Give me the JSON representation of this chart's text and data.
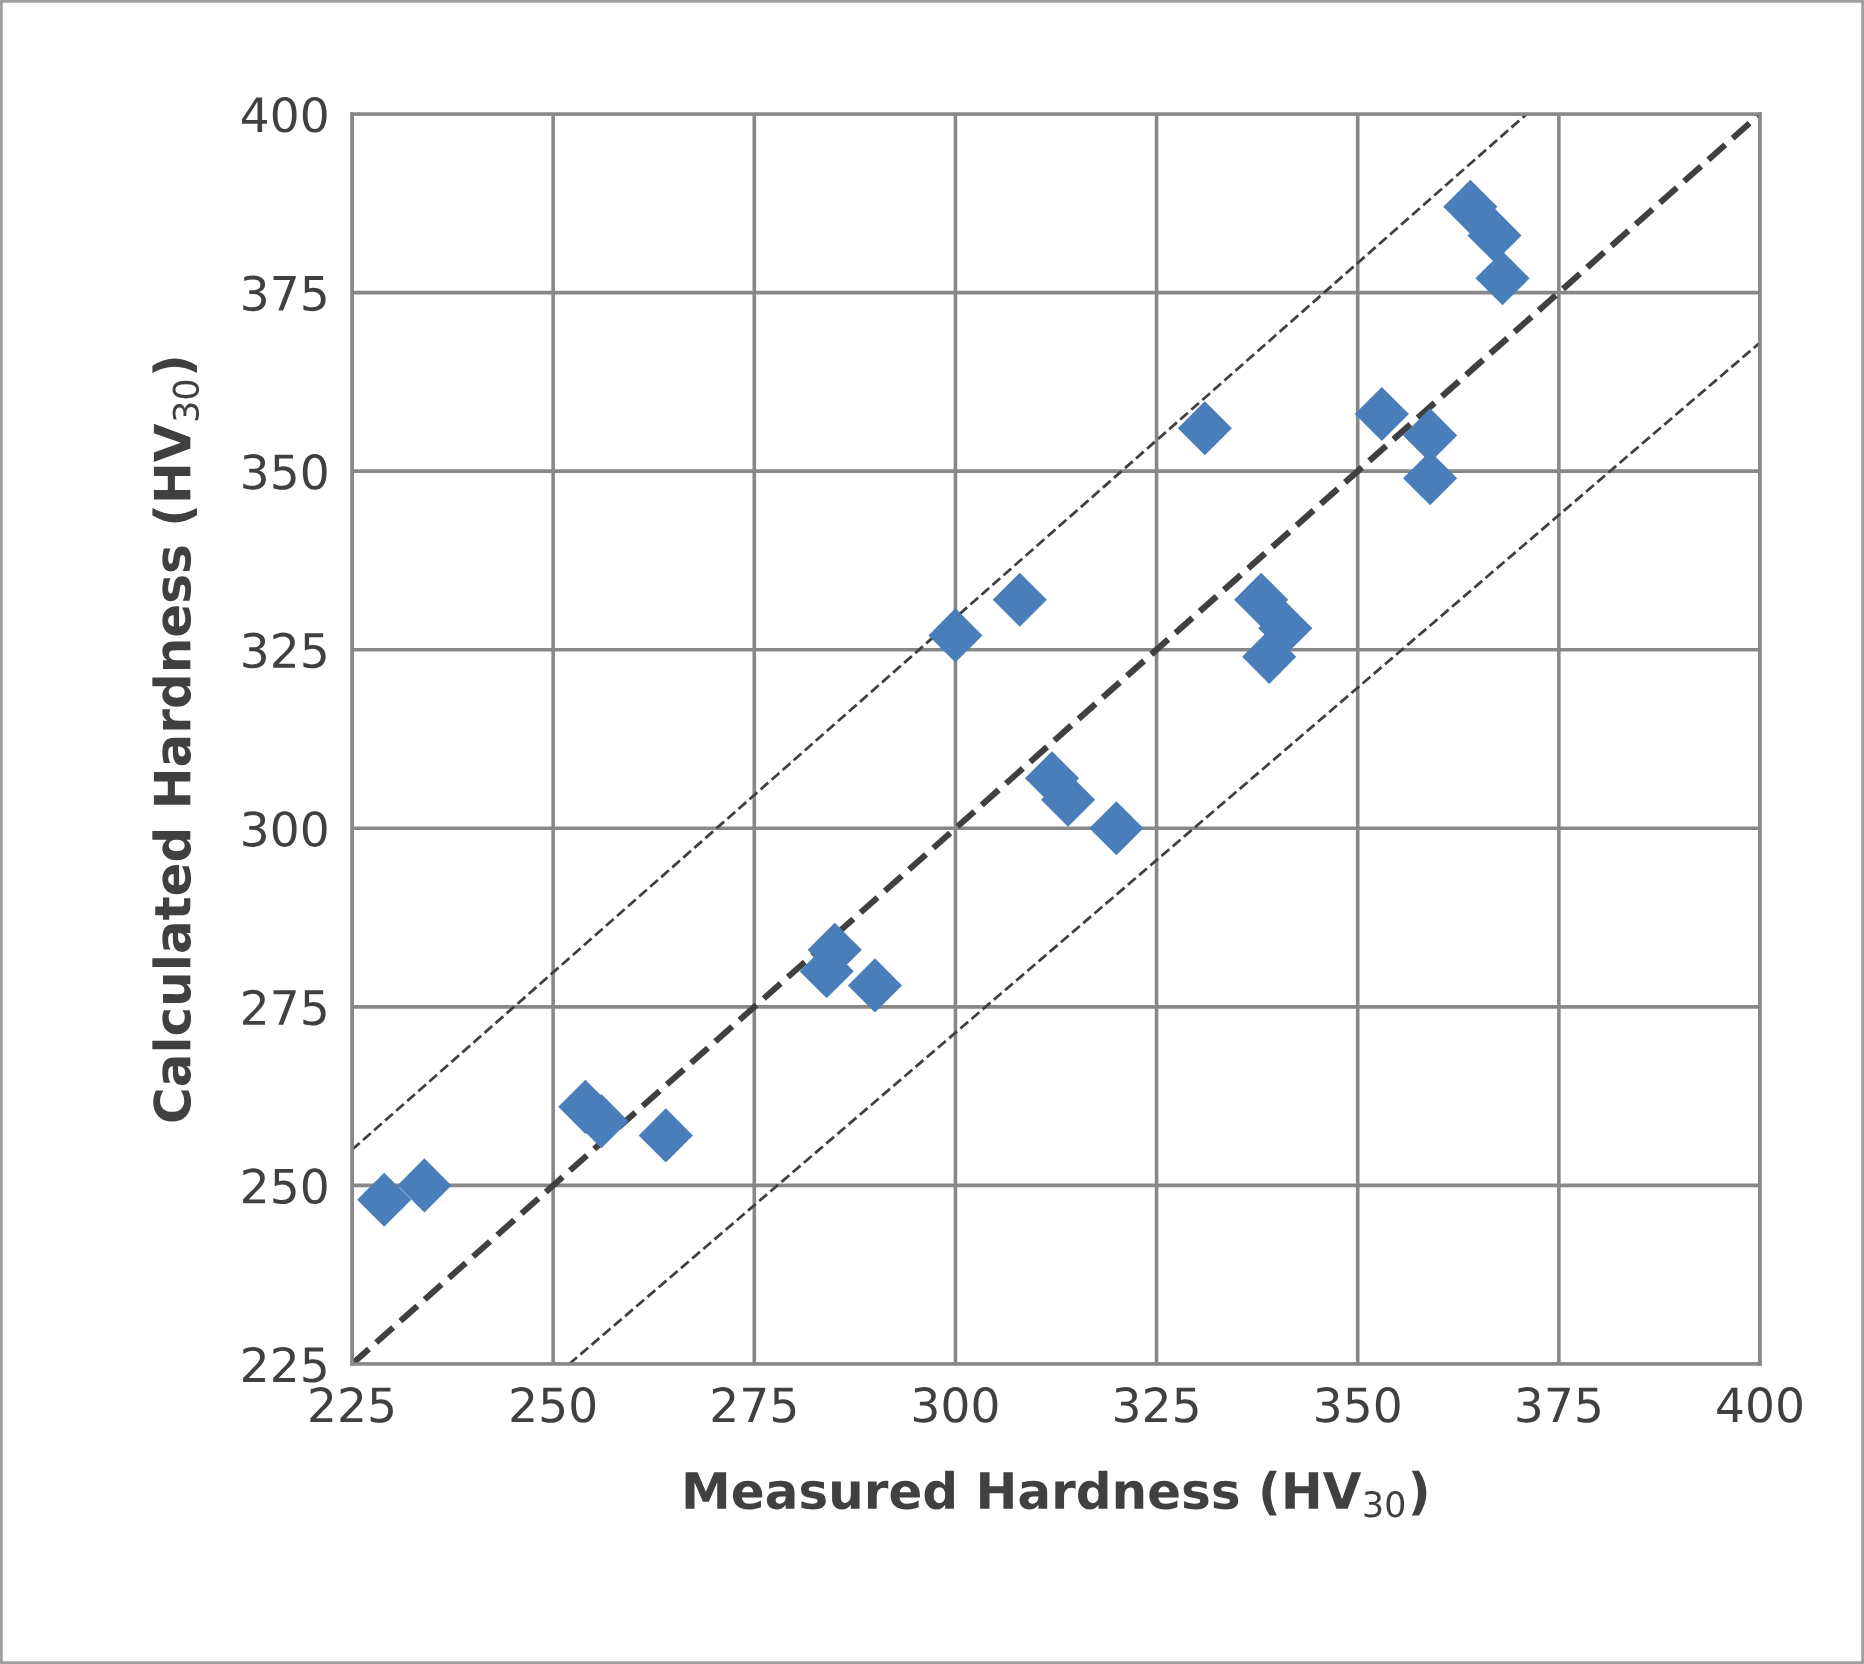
{
  "chart_data": {
    "type": "scatter",
    "xlabel": "Measured Hardness (HV$_{30}$)",
    "ylabel": "Calculated Hardness (HV$_{30}$)",
    "xlim": [
      225,
      400
    ],
    "ylim": [
      225,
      400
    ],
    "xticks": [
      225,
      250,
      275,
      300,
      325,
      350,
      375,
      400
    ],
    "yticks": [
      225,
      250,
      275,
      300,
      325,
      350,
      375,
      400
    ],
    "grid": true,
    "series": [
      {
        "color": "#4a7ebb",
        "marker": "diamond",
        "x": [
          229,
          234,
          254,
          256,
          264,
          284,
          285,
          290,
          300,
          308,
          312,
          314,
          320,
          331,
          338,
          341,
          339,
          353,
          359,
          359,
          364,
          367,
          368
        ],
        "values": [
          248,
          250,
          261,
          259,
          257,
          280,
          283,
          278,
          327,
          332,
          307,
          304,
          300,
          356,
          332,
          328,
          324,
          358,
          355,
          349,
          387,
          383,
          377
        ]
      },
      {
        "type": "line",
        "color": "#404040",
        "marker": "none",
        "line_style": "dashed",
        "x": [
          225,
          400
        ],
        "values": [
          225,
          400
        ]
      },
      {
        "type": "line",
        "color": "#404040",
        "marker": "none",
        "line_style": "dashed",
        "x": [
          225,
          371
        ],
        "values": [
          255,
          400
        ]
      },
      {
        "type": "line",
        "color": "#404040",
        "marker": "none",
        "line_style": "dashed",
        "x": [
          252,
          400
        ],
        "values": [
          225,
          368
        ]
      }
    ]
  }
}
